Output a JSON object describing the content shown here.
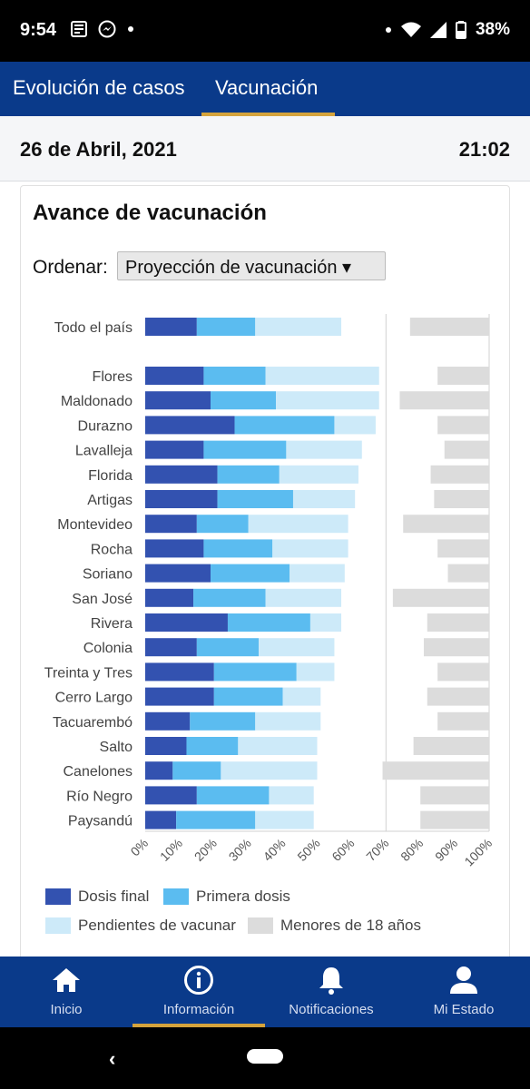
{
  "status_bar": {
    "time": "9:54",
    "battery": "38%"
  },
  "tabs": [
    {
      "label": "Evolución de casos",
      "active": false
    },
    {
      "label": "Vacunación",
      "active": true
    }
  ],
  "date_bar": {
    "date": "26 de Abril, 2021",
    "time": "21:02"
  },
  "card": {
    "title": "Avance de vacunación",
    "sort_label": "Ordenar:",
    "sort_value": "Proyección de vacunación ▾"
  },
  "chart_data": {
    "type": "bar",
    "orientation": "horizontal",
    "stacked": true,
    "categories": [
      "Todo el país",
      "Flores",
      "Maldonado",
      "Durazno",
      "Lavalleja",
      "Florida",
      "Artigas",
      "Montevideo",
      "Rocha",
      "Soriano",
      "San José",
      "Rivera",
      "Colonia",
      "Treinta y Tres",
      "Cerro Largo",
      "Tacuarembó",
      "Salto",
      "Canelones",
      "Río Negro",
      "Paysandú"
    ],
    "series": [
      {
        "name": "Dosis final",
        "color": "#3352b0",
        "values": [
          15,
          17,
          19,
          26,
          17,
          21,
          21,
          15,
          17,
          19,
          14,
          24,
          15,
          20,
          20,
          13,
          12,
          8,
          15,
          9
        ]
      },
      {
        "name": "Primera dosis",
        "color": "#5bbcf0",
        "values": [
          17,
          18,
          19,
          29,
          24,
          18,
          22,
          15,
          20,
          23,
          21,
          24,
          18,
          24,
          20,
          19,
          15,
          14,
          21,
          23
        ]
      },
      {
        "name": "Pendientes de vacunar",
        "color": "#cdeaf9",
        "values": [
          25,
          33,
          30,
          12,
          22,
          23,
          18,
          29,
          22,
          16,
          22,
          9,
          22,
          11,
          11,
          19,
          23,
          28,
          13,
          17
        ]
      },
      {
        "name": "Menores de 18 años",
        "color": "#dcdcdc",
        "values": [
          23,
          15,
          26,
          15,
          13,
          17,
          16,
          25,
          15,
          12,
          28,
          18,
          19,
          15,
          18,
          15,
          22,
          31,
          20,
          20
        ]
      }
    ],
    "xticks": [
      "0%",
      "10%",
      "20%",
      "30%",
      "40%",
      "50%",
      "60%",
      "70%",
      "80%",
      "90%",
      "100%"
    ],
    "xlim": [
      0,
      100
    ],
    "gridlines": [
      70,
      100
    ],
    "legend_position": "bottom"
  },
  "bottom_nav": [
    {
      "label": "Inicio",
      "icon": "home-icon",
      "active": false
    },
    {
      "label": "Información",
      "icon": "info-icon",
      "active": true
    },
    {
      "label": "Notificaciones",
      "icon": "bell-icon",
      "active": false
    },
    {
      "label": "Mi Estado",
      "icon": "person-icon",
      "active": false
    }
  ],
  "colors": {
    "brand": "#0a3a8a",
    "accent": "#d4a33c"
  }
}
